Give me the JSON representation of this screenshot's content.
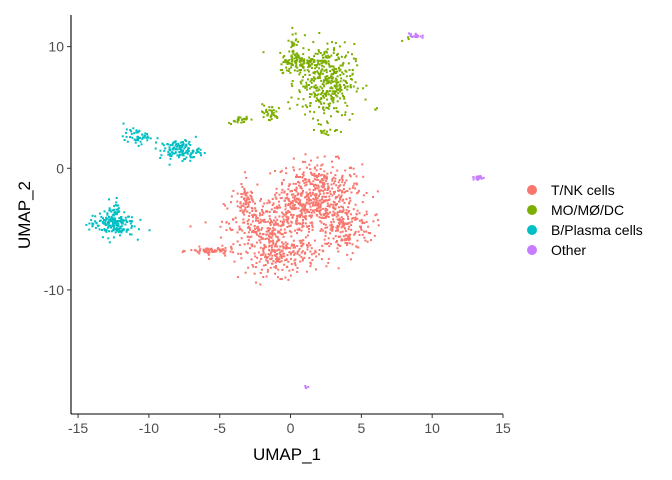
{
  "chart_data": {
    "type": "scatter",
    "title": "",
    "xlabel": "UMAP_1",
    "ylabel": "UMAP_2",
    "xlim": [
      -15.5,
      15
    ],
    "ylim": [
      -20.2,
      12.6
    ],
    "x_ticks": [
      -15,
      -10,
      -5,
      0,
      5,
      10,
      15
    ],
    "y_ticks": [
      -10,
      0,
      10
    ],
    "x_tick_labels": [
      "-15",
      "-10",
      "-5",
      "0",
      "5",
      "10",
      "15"
    ],
    "y_tick_labels": [
      "-10",
      "0",
      "10"
    ],
    "grid": false,
    "legend_position": "right",
    "series": [
      {
        "name": "T/NK cells",
        "color": "#F8766D",
        "clusters": [
          {
            "cx": 2.0,
            "cy": -1.6,
            "sx": 1.5,
            "sy": 1.1,
            "n": 320
          },
          {
            "cx": 1.0,
            "cy": -3.5,
            "sx": 1.3,
            "sy": 0.9,
            "n": 220
          },
          {
            "cx": 3.6,
            "cy": -4.8,
            "sx": 1.1,
            "sy": 1.2,
            "n": 220
          },
          {
            "cx": -1.8,
            "cy": -5.0,
            "sx": 1.4,
            "sy": 1.4,
            "n": 320
          },
          {
            "cx": -0.6,
            "cy": -7.2,
            "sx": 1.2,
            "sy": 0.8,
            "n": 180
          },
          {
            "cx": -5.5,
            "cy": -6.8,
            "sx": 0.8,
            "sy": 0.15,
            "n": 70
          },
          {
            "cx": -3.2,
            "cy": -2.6,
            "sx": 0.25,
            "sy": 0.7,
            "n": 40
          }
        ]
      },
      {
        "name": "MO/MØ/DC",
        "color": "#7CAE00",
        "clusters": [
          {
            "cx": 2.5,
            "cy": 7.2,
            "sx": 1.0,
            "sy": 1.5,
            "n": 380
          },
          {
            "cx": 0.8,
            "cy": 8.7,
            "sx": 0.8,
            "sy": 0.4,
            "n": 120
          },
          {
            "cx": 0.2,
            "cy": 10.3,
            "sx": 0.15,
            "sy": 0.5,
            "n": 25
          },
          {
            "cx": -1.5,
            "cy": 4.5,
            "sx": 0.35,
            "sy": 0.35,
            "n": 35
          },
          {
            "cx": -3.6,
            "cy": 4.0,
            "sx": 0.4,
            "sy": 0.15,
            "n": 25
          },
          {
            "cx": 2.5,
            "cy": 3.0,
            "sx": 0.4,
            "sy": 0.2,
            "n": 15
          },
          {
            "cx": 6.0,
            "cy": 4.9,
            "sx": 0.1,
            "sy": 0.1,
            "n": 3
          },
          {
            "cx": 8.3,
            "cy": 10.6,
            "sx": 0.15,
            "sy": 0.1,
            "n": 3
          }
        ]
      },
      {
        "name": "B/Plasma cells",
        "color": "#00BFC4",
        "clusters": [
          {
            "cx": -7.8,
            "cy": 1.5,
            "sx": 0.7,
            "sy": 0.4,
            "n": 130
          },
          {
            "cx": -10.8,
            "cy": 2.6,
            "sx": 0.5,
            "sy": 0.3,
            "n": 50
          },
          {
            "cx": -12.6,
            "cy": -4.6,
            "sx": 0.8,
            "sy": 0.5,
            "n": 170
          },
          {
            "cx": -12.4,
            "cy": -3.4,
            "sx": 0.2,
            "sy": 0.4,
            "n": 25
          }
        ]
      },
      {
        "name": "Other",
        "color": "#C77CFF",
        "clusters": [
          {
            "cx": 8.8,
            "cy": 10.9,
            "sx": 0.22,
            "sy": 0.1,
            "n": 20
          },
          {
            "cx": 13.2,
            "cy": -0.7,
            "sx": 0.2,
            "sy": 0.2,
            "n": 20
          },
          {
            "cx": 1.1,
            "cy": -18.0,
            "sx": 0.1,
            "sy": 0.07,
            "n": 4
          }
        ]
      }
    ]
  }
}
